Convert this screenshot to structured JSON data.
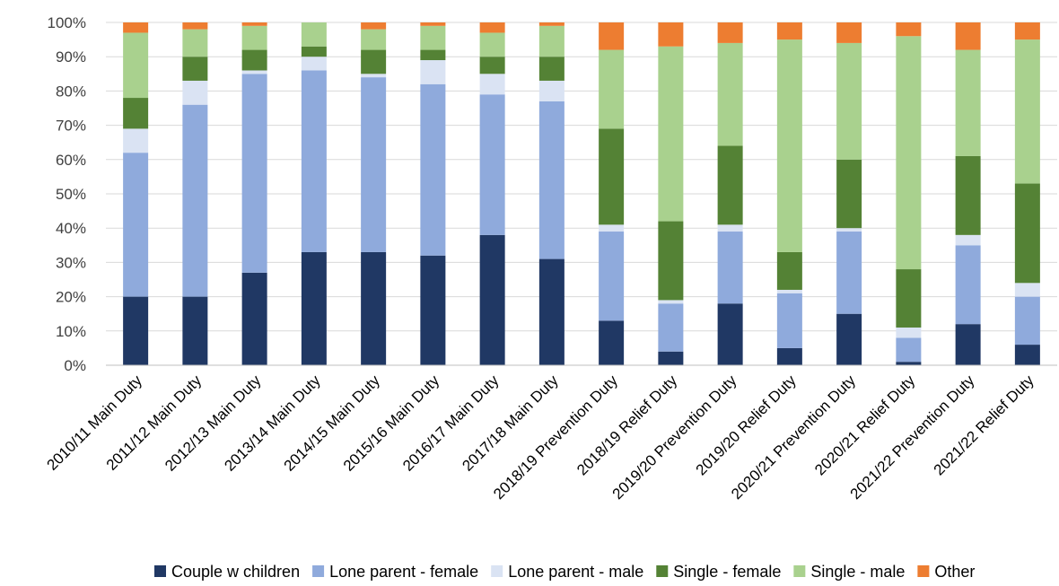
{
  "chart_data": {
    "type": "bar",
    "stacked": true,
    "percent_stacked": true,
    "title": "",
    "xlabel": "",
    "ylabel": "",
    "ylim": [
      0,
      100
    ],
    "y_ticks": [
      "0%",
      "10%",
      "20%",
      "30%",
      "40%",
      "50%",
      "60%",
      "70%",
      "80%",
      "90%",
      "100%"
    ],
    "grid": true,
    "legend_position": "bottom",
    "categories": [
      "2010/11 Main Duty",
      "2011/12 Main Duty",
      "2012/13 Main Duty",
      "2013/14 Main Duty",
      "2014/15 Main Duty",
      "2015/16 Main Duty",
      "2016/17 Main Duty",
      "2017/18 Main Duty",
      "2018/19 Prevention Duty",
      "2018/19 Relief Duty",
      "2019/20 Prevention Duty",
      "2019/20 Relief Duty",
      "2020/21 Prevention Duty",
      "2020/21 Relief Duty",
      "2021/22 Prevention Duty",
      "2021/22 Relief Duty"
    ],
    "series": [
      {
        "name": "Couple w children",
        "color": "#203864",
        "values": [
          20,
          20,
          27,
          33,
          33,
          32,
          38,
          31,
          13,
          4,
          18,
          5,
          15,
          1,
          12,
          6
        ]
      },
      {
        "name": "Lone parent - female",
        "color": "#8faadc",
        "values": [
          42,
          56,
          58,
          53,
          51,
          50,
          41,
          46,
          26,
          14,
          21,
          16,
          24,
          7,
          23,
          14
        ]
      },
      {
        "name": "Lone parent - male",
        "color": "#dae3f3",
        "values": [
          7,
          7,
          1,
          4,
          1,
          7,
          6,
          6,
          2,
          1,
          2,
          1,
          1,
          3,
          3,
          4
        ]
      },
      {
        "name": "Single - female",
        "color": "#548235",
        "values": [
          9,
          7,
          6,
          3,
          7,
          3,
          5,
          7,
          28,
          23,
          23,
          11,
          20,
          17,
          23,
          29
        ]
      },
      {
        "name": "Single - male",
        "color": "#a9d18e",
        "values": [
          19,
          8,
          7,
          7,
          6,
          7,
          7,
          9,
          23,
          51,
          30,
          62,
          34,
          68,
          31,
          42
        ]
      },
      {
        "name": "Other",
        "color": "#ed7d31",
        "values": [
          3,
          2,
          1,
          0,
          2,
          1,
          3,
          1,
          8,
          7,
          6,
          5,
          6,
          4,
          8,
          5
        ]
      }
    ]
  }
}
